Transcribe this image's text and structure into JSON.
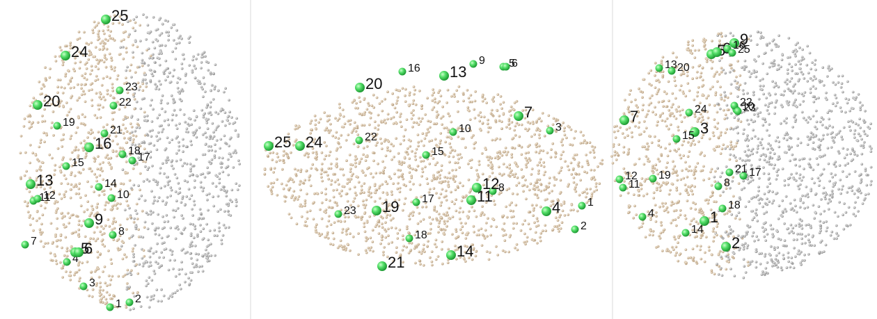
{
  "panels": [
    {
      "landmarks": [
        "1",
        "2",
        "3",
        "4",
        "5",
        "6",
        "7",
        "8",
        "9",
        "10",
        "11",
        "12",
        "13",
        "14",
        "15",
        "16",
        "17",
        "18",
        "19",
        "20",
        "21",
        "22",
        "23",
        "24",
        "25"
      ]
    },
    {
      "landmarks": [
        "1",
        "2",
        "3",
        "4",
        "5",
        "6",
        "7",
        "8",
        "9",
        "10",
        "11",
        "12",
        "13",
        "14",
        "15",
        "16",
        "17",
        "18",
        "19",
        "20",
        "21",
        "22",
        "23",
        "24",
        "25"
      ]
    },
    {
      "landmarks": [
        "1",
        "2",
        "3",
        "4",
        "5",
        "6",
        "7",
        "8",
        "9",
        "10",
        "11",
        "12",
        "13",
        "14",
        "15",
        "16",
        "17",
        "18",
        "19",
        "20",
        "21",
        "22",
        "23",
        "24",
        "25"
      ]
    }
  ]
}
